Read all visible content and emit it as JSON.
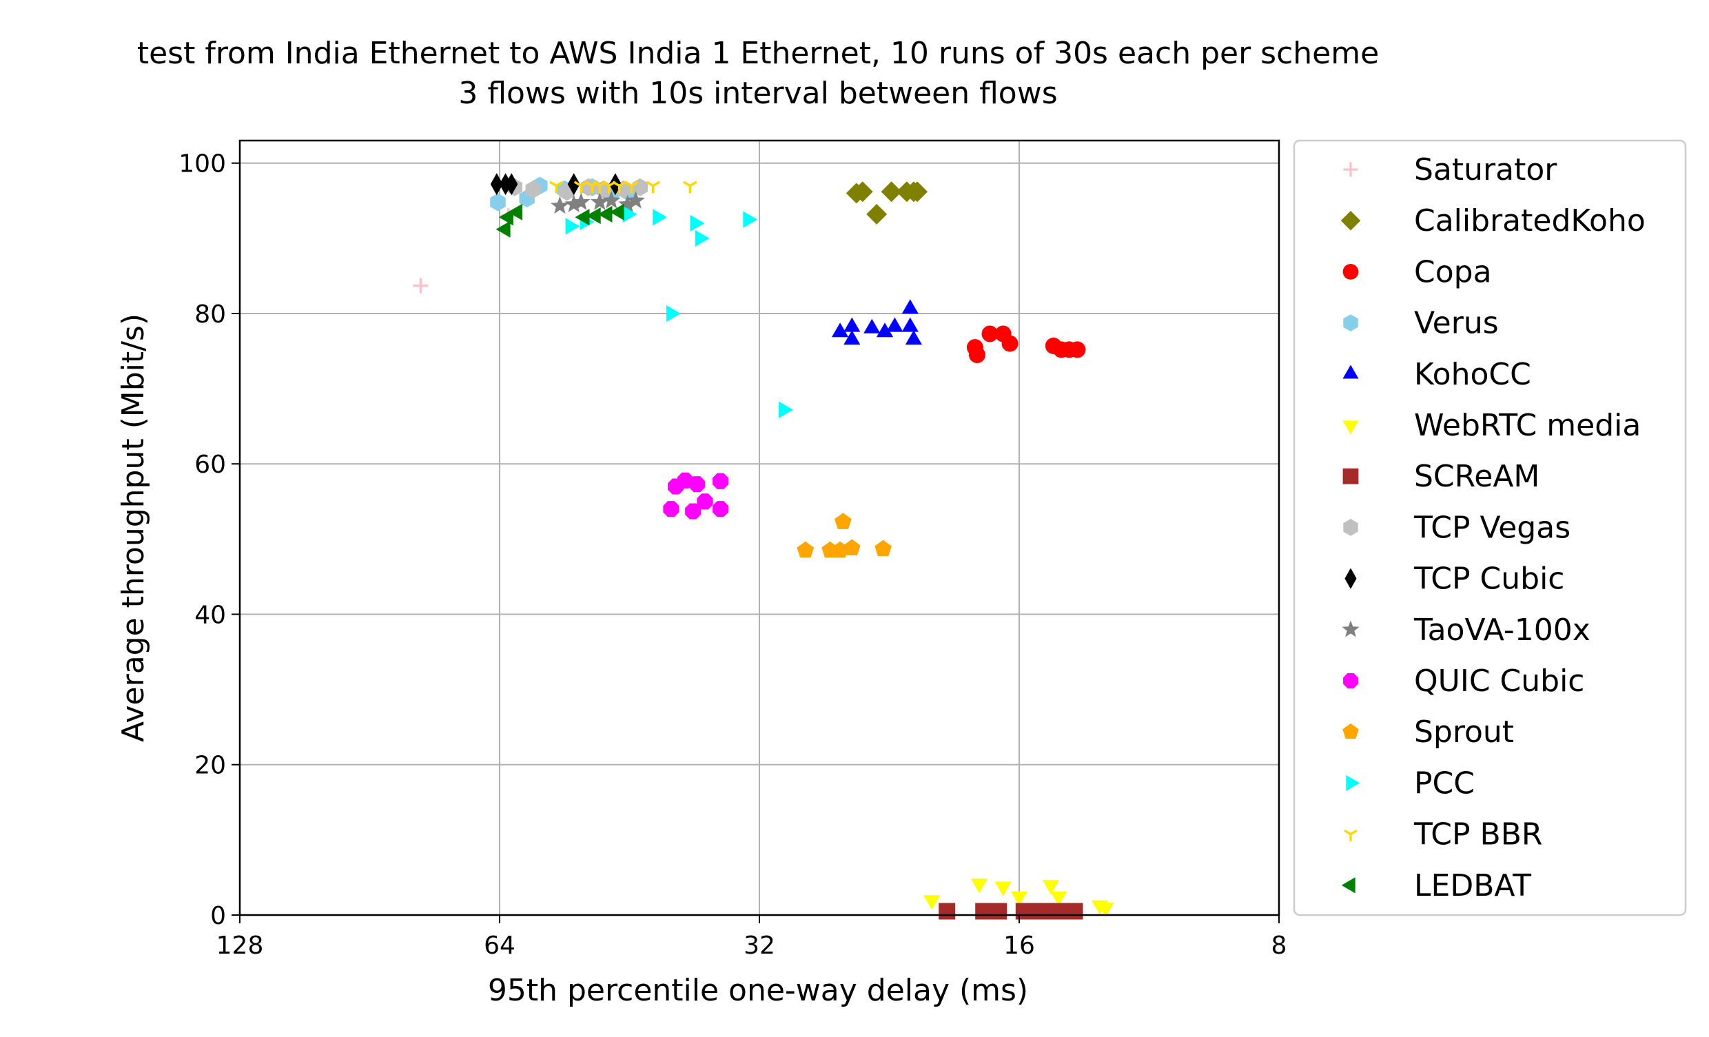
{
  "chart_data": {
    "type": "scatter",
    "title_lines": [
      "test from India Ethernet to AWS India 1 Ethernet, 10 runs of 30s each per scheme",
      "3 flows with 10s interval between flows"
    ],
    "xlabel": "95th percentile one-way delay (ms)",
    "ylabel": "Average throughput (Mbit/s)",
    "x_scale": "log2",
    "x_inverted": true,
    "xlim": [
      128,
      8
    ],
    "ylim": [
      0,
      103
    ],
    "xticks": [
      128,
      64,
      32,
      16,
      8
    ],
    "xtick_labels": [
      "128",
      "64",
      "32",
      "16",
      "8"
    ],
    "yticks": [
      0,
      20,
      40,
      60,
      80,
      100
    ],
    "ytick_labels": [
      "0",
      "20",
      "40",
      "60",
      "80",
      "100"
    ],
    "grid": true,
    "legend_position": "outside-right",
    "series": [
      {
        "name": "Saturator",
        "marker": "plus",
        "color": "#ffc0cb",
        "points": [
          [
            79,
            83.7
          ],
          [
            62.5,
            93.0
          ]
        ]
      },
      {
        "name": "CalibratedKoho",
        "marker": "diamond",
        "color": "#808000",
        "points": [
          [
            24.7,
            96.0
          ],
          [
            24.3,
            96.2
          ],
          [
            23.4,
            93.2
          ],
          [
            22.5,
            96.2
          ],
          [
            21.6,
            96.2
          ],
          [
            21.2,
            96.2
          ],
          [
            21.0,
            96.2
          ]
        ]
      },
      {
        "name": "Copa",
        "marker": "circle",
        "color": "#ff0000",
        "points": [
          [
            18.0,
            75.5
          ],
          [
            17.9,
            74.5
          ],
          [
            17.3,
            77.3
          ],
          [
            16.7,
            77.3
          ],
          [
            16.4,
            76.0
          ],
          [
            14.6,
            75.7
          ],
          [
            14.3,
            75.2
          ],
          [
            14.0,
            75.2
          ],
          [
            13.7,
            75.2
          ]
        ]
      },
      {
        "name": "Verus",
        "marker": "hexagon",
        "color": "#87ceeb",
        "points": [
          [
            64.3,
            94.8
          ],
          [
            59.5,
            95.3
          ],
          [
            57.5,
            97.0
          ],
          [
            53.8,
            96.5
          ],
          [
            50.0,
            96.8
          ],
          [
            47.5,
            96.0
          ],
          [
            45.5,
            96.2
          ]
        ]
      },
      {
        "name": "KohoCC",
        "marker": "triangle-up",
        "color": "#0000ff",
        "points": [
          [
            25.8,
            77.5
          ],
          [
            25.0,
            76.5
          ],
          [
            25.0,
            78.2
          ],
          [
            23.7,
            78.0
          ],
          [
            22.9,
            77.5
          ],
          [
            22.3,
            78.2
          ],
          [
            21.4,
            80.6
          ],
          [
            21.4,
            78.2
          ],
          [
            21.2,
            76.5
          ]
        ]
      },
      {
        "name": "WebRTC media",
        "marker": "triangle-down",
        "color": "#ffff00",
        "points": [
          [
            20.2,
            2.0
          ],
          [
            17.8,
            4.2
          ],
          [
            16.7,
            3.8
          ],
          [
            16.0,
            2.5
          ],
          [
            14.7,
            4.0
          ],
          [
            14.4,
            2.5
          ],
          [
            12.9,
            1.3
          ],
          [
            12.7,
            1.0
          ]
        ]
      },
      {
        "name": "SCReAM",
        "marker": "square",
        "color": "#a52a2a",
        "points": [
          [
            19.4,
            0.5
          ],
          [
            17.6,
            0.5
          ],
          [
            16.9,
            0.5
          ],
          [
            15.8,
            0.5
          ],
          [
            15.3,
            0.5
          ],
          [
            14.9,
            0.5
          ],
          [
            14.5,
            0.5
          ],
          [
            14.1,
            0.5
          ],
          [
            13.8,
            0.5
          ]
        ]
      },
      {
        "name": "TCP Vegas",
        "marker": "hexagon",
        "color": "#c0c0c0",
        "points": [
          [
            61.5,
            96.8
          ],
          [
            58.5,
            96.5
          ],
          [
            53.5,
            96.2
          ],
          [
            50.5,
            96.8
          ],
          [
            48.5,
            96.5
          ],
          [
            46.0,
            96.5
          ],
          [
            44.0,
            96.8
          ]
        ]
      },
      {
        "name": "TCP Cubic",
        "marker": "diamond-thin",
        "color": "#000000",
        "points": [
          [
            64.5,
            97.2
          ],
          [
            63.0,
            97.2
          ],
          [
            62.0,
            97.2
          ],
          [
            52.5,
            97.2
          ],
          [
            47.0,
            97.2
          ]
        ]
      },
      {
        "name": "TaoVA-100x",
        "marker": "star",
        "color": "#808080",
        "points": [
          [
            54.5,
            94.3
          ],
          [
            52.5,
            94.5
          ],
          [
            51.5,
            94.8
          ],
          [
            49.0,
            94.8
          ],
          [
            47.5,
            95.0
          ],
          [
            45.5,
            94.5
          ],
          [
            44.5,
            95.0
          ]
        ]
      },
      {
        "name": "QUIC Cubic",
        "marker": "octagon",
        "color": "#ff00ff",
        "points": [
          [
            40.5,
            54.0
          ],
          [
            40.0,
            57.0
          ],
          [
            39.0,
            57.8
          ],
          [
            37.8,
            57.3
          ],
          [
            38.2,
            53.7
          ],
          [
            37.0,
            55.0
          ],
          [
            35.5,
            57.7
          ],
          [
            35.5,
            54.0
          ]
        ]
      },
      {
        "name": "Sprout",
        "marker": "pentagon",
        "color": "#ffa500",
        "points": [
          [
            28.3,
            48.5
          ],
          [
            26.5,
            48.5
          ],
          [
            25.8,
            48.5
          ],
          [
            25.6,
            52.3
          ],
          [
            25.0,
            48.8
          ],
          [
            23.0,
            48.7
          ]
        ]
      },
      {
        "name": "PCC",
        "marker": "triangle-right",
        "color": "#00ffff",
        "points": [
          [
            53.0,
            91.6
          ],
          [
            51.0,
            92.2
          ],
          [
            45.5,
            93.2
          ],
          [
            42.0,
            92.8
          ],
          [
            40.5,
            80.0
          ],
          [
            38.0,
            92.0
          ],
          [
            37.5,
            90.0
          ],
          [
            33.0,
            92.5
          ],
          [
            30.0,
            67.2
          ]
        ]
      },
      {
        "name": "TCP BBR",
        "marker": "tri-down",
        "color": "#ffd700",
        "points": [
          [
            55.0,
            97.0
          ],
          [
            51.5,
            97.0
          ],
          [
            50.0,
            97.0
          ],
          [
            49.0,
            97.0
          ],
          [
            47.8,
            97.0
          ],
          [
            46.5,
            97.0
          ],
          [
            45.0,
            97.0
          ],
          [
            42.5,
            97.0
          ],
          [
            38.5,
            97.0
          ]
        ]
      },
      {
        "name": "LEDBAT",
        "marker": "triangle-left",
        "color": "#008000",
        "points": [
          [
            63.0,
            91.2
          ],
          [
            62.5,
            92.8
          ],
          [
            61.0,
            93.5
          ],
          [
            51.0,
            92.8
          ],
          [
            49.5,
            93.0
          ],
          [
            48.0,
            93.2
          ],
          [
            46.5,
            93.5
          ]
        ]
      }
    ]
  }
}
